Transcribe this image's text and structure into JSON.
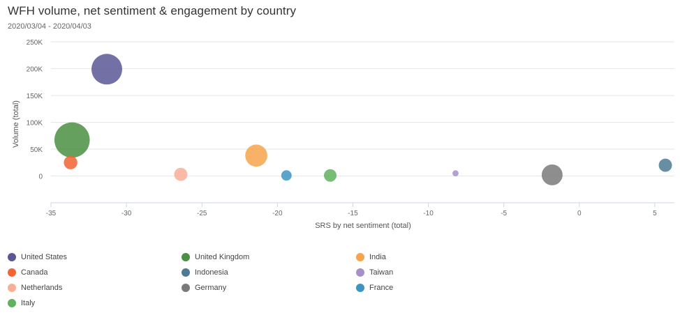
{
  "header": {
    "title": "WFH volume, net sentiment & engagement by country",
    "subtitle": "2020/03/04 - 2020/04/03"
  },
  "chart_data": {
    "type": "scatter",
    "title": "WFH volume, net sentiment & engagement by country",
    "subtitle": "2020/03/04 - 2020/04/03",
    "xlabel": "SRS by net sentiment (total)",
    "ylabel": "Volume (total)",
    "xlim": [
      -35,
      6.3
    ],
    "ylim": [
      -50000,
      250000
    ],
    "x_ticks": [
      -35,
      -30,
      -25,
      -20,
      -15,
      -10,
      -5,
      0,
      5
    ],
    "x_tick_labels": [
      "-35",
      "-30",
      "-25",
      "-20",
      "-15",
      "-10",
      "-5",
      "0",
      "5"
    ],
    "y_ticks": [
      0,
      50000,
      100000,
      150000,
      200000,
      250000
    ],
    "y_tick_labels": [
      "0",
      "50K",
      "100K",
      "150K",
      "200K",
      "250K"
    ],
    "grid": "horizontal",
    "legend_position": "bottom",
    "series": [
      {
        "name": "United States",
        "color": "#5b5797",
        "x": -31.3,
        "y": 199000,
        "size": 1.0
      },
      {
        "name": "United Kingdom",
        "color": "#4a8f42",
        "x": -33.6,
        "y": 67000,
        "size": 1.15
      },
      {
        "name": "India",
        "color": "#f6a44d",
        "x": -21.4,
        "y": 38000,
        "size": 0.72
      },
      {
        "name": "Canada",
        "color": "#f26432",
        "x": -33.7,
        "y": 25000,
        "size": 0.44
      },
      {
        "name": "Indonesia",
        "color": "#4e7a93",
        "x": 5.7,
        "y": 20000,
        "size": 0.43
      },
      {
        "name": "Taiwan",
        "color": "#a691c9",
        "x": -8.2,
        "y": 5000,
        "size": 0.2
      },
      {
        "name": "Netherlands",
        "color": "#f9ae96",
        "x": -26.4,
        "y": 3000,
        "size": 0.43
      },
      {
        "name": "Germany",
        "color": "#7a7a7a",
        "x": -1.8,
        "y": 2000,
        "size": 0.68
      },
      {
        "name": "France",
        "color": "#3d95c2",
        "x": -19.4,
        "y": 1000,
        "size": 0.34
      },
      {
        "name": "Italy",
        "color": "#5fb15b",
        "x": -16.5,
        "y": 1000,
        "size": 0.41
      }
    ]
  }
}
